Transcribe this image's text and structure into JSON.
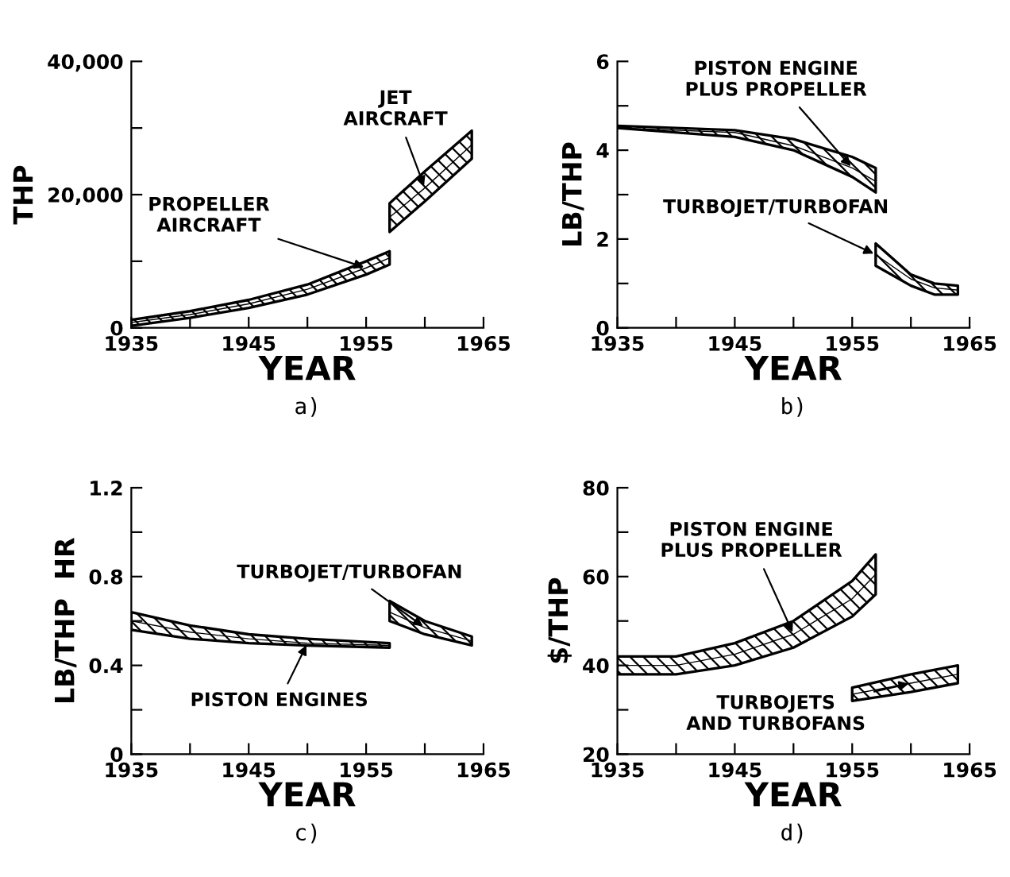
{
  "chart_data": [
    {
      "type": "line",
      "xlabel": "YEAR",
      "ylabel": "THP",
      "annotations": [
        "a)"
      ],
      "xlim": [
        1935,
        1965
      ],
      "ylim": [
        0,
        40000
      ],
      "xticks": [
        1935,
        {
          "value": 1940,
          "label": null
        },
        1945,
        {
          "value": 1950,
          "label": null
        },
        1955,
        {
          "value": 1960,
          "label": null
        },
        1965
      ],
      "yticks": [
        0,
        {
          "value": 10000,
          "label": null
        },
        {
          "value": 20000,
          "label": "20,000"
        },
        {
          "value": 30000,
          "label": null
        },
        {
          "value": 40000,
          "label": "40,000"
        }
      ],
      "series": [
        {
          "name": "PROPELLER\nAIRCRAFT",
          "color": "#000000",
          "x": [
            1935,
            1940,
            1945,
            1950,
            1955,
            1957
          ],
          "values": [
            800,
            2000,
            3600,
            5800,
            9000,
            10500
          ],
          "lower": [
            300,
            1500,
            3000,
            5000,
            8000,
            9500
          ],
          "upper": [
            1200,
            2500,
            4200,
            6500,
            10000,
            11500
          ]
        },
        {
          "name": "JET\nAIRCRAFT",
          "color": "#000000",
          "x": [
            1957,
            1960,
            1964
          ],
          "values": [
            16600,
            21000,
            27500
          ],
          "lower": [
            14400,
            19000,
            25400
          ],
          "upper": [
            18700,
            23500,
            29600
          ]
        }
      ]
    },
    {
      "type": "line",
      "xlabel": "YEAR",
      "ylabel": "LB/THP",
      "annotations": [
        "b)"
      ],
      "xlim": [
        1935,
        1965
      ],
      "ylim": [
        0,
        6
      ],
      "xticks": [
        1935,
        {
          "value": 1940,
          "label": null
        },
        1945,
        {
          "value": 1950,
          "label": null
        },
        1955,
        {
          "value": 1960,
          "label": null
        },
        1965
      ],
      "yticks": [
        0,
        {
          "value": 1,
          "label": null
        },
        2,
        {
          "value": 3,
          "label": null
        },
        4,
        {
          "value": 5,
          "label": null
        },
        6
      ],
      "series": [
        {
          "name": "PISTON ENGINE\nPLUS PROPELLER",
          "color": "#000000",
          "x": [
            1935,
            1945,
            1950,
            1955,
            1957
          ],
          "values": [
            4.5,
            4.4,
            4.1,
            3.6,
            3.3
          ],
          "lower": [
            4.5,
            4.3,
            4.0,
            3.4,
            3.05
          ],
          "upper": [
            4.55,
            4.45,
            4.25,
            3.85,
            3.6
          ]
        },
        {
          "name": "TURBOJET/TURBOFAN",
          "color": "#000000",
          "x": [
            1957,
            1960,
            1962,
            1964
          ],
          "values": [
            1.65,
            1.1,
            0.9,
            0.85
          ],
          "lower": [
            1.4,
            0.95,
            0.75,
            0.75
          ],
          "upper": [
            1.9,
            1.2,
            1.0,
            0.95
          ]
        }
      ]
    },
    {
      "type": "line",
      "xlabel": "YEAR",
      "ylabel": "LB/THP  HR",
      "annotations": [
        "c)"
      ],
      "xlim": [
        1935,
        1965
      ],
      "ylim": [
        0,
        1.2
      ],
      "xticks": [
        1935,
        {
          "value": 1940,
          "label": null
        },
        1945,
        {
          "value": 1950,
          "label": null
        },
        1955,
        {
          "value": 1960,
          "label": null
        },
        1965
      ],
      "yticks": [
        0,
        {
          "value": 0.2,
          "label": null
        },
        0.4,
        {
          "value": 0.6,
          "label": null
        },
        0.8,
        {
          "value": 1.0,
          "label": null
        },
        1.2
      ],
      "series": [
        {
          "name": "PISTON ENGINES",
          "color": "#000000",
          "x": [
            1935,
            1940,
            1945,
            1950,
            1957
          ],
          "values": [
            0.6,
            0.55,
            0.52,
            0.5,
            0.49
          ],
          "lower": [
            0.56,
            0.52,
            0.5,
            0.49,
            0.48
          ],
          "upper": [
            0.64,
            0.58,
            0.54,
            0.52,
            0.5
          ]
        },
        {
          "name": "TURBOJET/TURBOFAN",
          "color": "#000000",
          "x": [
            1957,
            1960,
            1964
          ],
          "values": [
            0.64,
            0.57,
            0.51
          ],
          "lower": [
            0.6,
            0.54,
            0.49
          ],
          "upper": [
            0.69,
            0.6,
            0.53
          ]
        }
      ]
    },
    {
      "type": "line",
      "xlabel": "YEAR",
      "ylabel": "$/THP",
      "annotations": [
        "d)"
      ],
      "xlim": [
        1935,
        1965
      ],
      "ylim": [
        20,
        80
      ],
      "xticks": [
        1935,
        {
          "value": 1940,
          "label": null
        },
        1945,
        {
          "value": 1950,
          "label": null
        },
        1955,
        {
          "value": 1960,
          "label": null
        },
        1965
      ],
      "yticks": [
        20,
        {
          "value": 30,
          "label": null
        },
        40,
        {
          "value": 50,
          "label": null
        },
        60,
        {
          "value": 70,
          "label": null
        },
        80
      ],
      "series": [
        {
          "name": "PISTON ENGINE\nPLUS PROPELLER",
          "color": "#000000",
          "x": [
            1935,
            1940,
            1945,
            1950,
            1955,
            1957
          ],
          "values": [
            40,
            40,
            42.5,
            47,
            55,
            60.5
          ],
          "lower": [
            38,
            38,
            40,
            44,
            51,
            56
          ],
          "upper": [
            42,
            42,
            45,
            50,
            59,
            65
          ]
        },
        {
          "name": "TURBOJETS\nAND TURBOFANS",
          "color": "#000000",
          "x": [
            1955,
            1960,
            1964
          ],
          "values": [
            33.5,
            36,
            38
          ],
          "lower": [
            32,
            34,
            36
          ],
          "upper": [
            35,
            38,
            40
          ]
        }
      ]
    }
  ]
}
